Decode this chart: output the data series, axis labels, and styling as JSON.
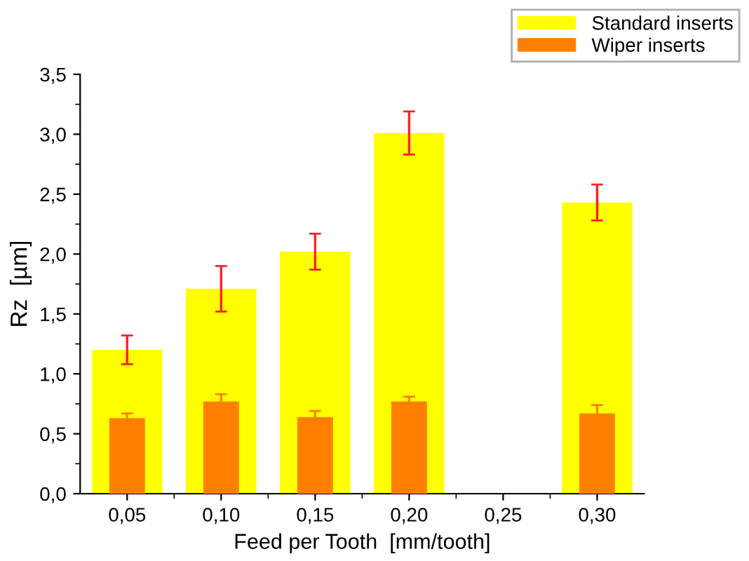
{
  "chart_data": {
    "type": "bar",
    "xlabel": "Feed per Tooth  [mm/tooth]",
    "ylabel": "Rz  [µm]",
    "categories": [
      "0,05",
      "0,10",
      "0,15",
      "0,20",
      "0,25",
      "0,30"
    ],
    "series": [
      {
        "name": "Standard inserts",
        "color": "#ffff00",
        "values": [
          1.2,
          1.71,
          2.02,
          3.01,
          null,
          2.43
        ],
        "errors": [
          0.12,
          0.19,
          0.15,
          0.18,
          null,
          0.15
        ]
      },
      {
        "name": "Wiper inserts",
        "color": "#ff8000",
        "values": [
          0.63,
          0.77,
          0.64,
          0.77,
          null,
          0.67
        ],
        "errors": [
          0.04,
          0.06,
          0.05,
          0.04,
          null,
          0.07
        ]
      }
    ],
    "ylim": [
      0,
      3.5
    ],
    "yticks": [
      {
        "value": 0,
        "label": "0,0"
      },
      {
        "value": 0.5,
        "label": "0,5"
      },
      {
        "value": 1.0,
        "label": "1,0"
      },
      {
        "value": 1.5,
        "label": "1,5"
      },
      {
        "value": 2.0,
        "label": "2,0"
      },
      {
        "value": 2.5,
        "label": "2,5"
      },
      {
        "value": 3.0,
        "label": "3,0"
      },
      {
        "value": 3.5,
        "label": "3,5"
      }
    ],
    "legend": "top right",
    "grid": false
  }
}
